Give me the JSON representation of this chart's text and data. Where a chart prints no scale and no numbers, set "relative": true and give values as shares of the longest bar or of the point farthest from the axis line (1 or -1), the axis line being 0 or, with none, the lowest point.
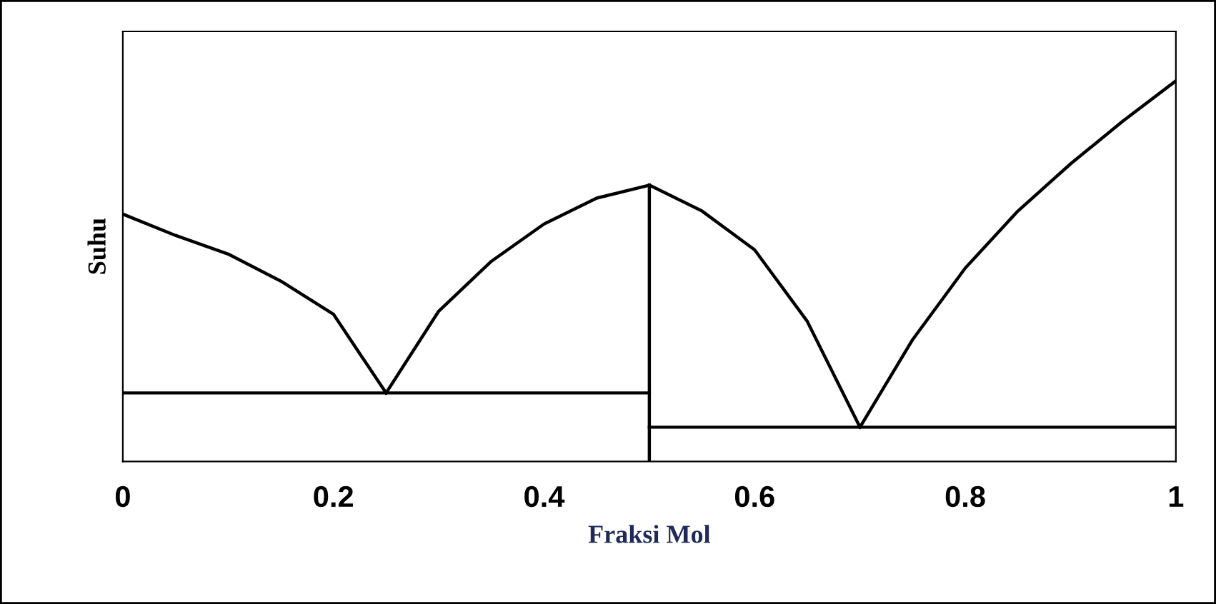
{
  "chart_data": {
    "type": "line",
    "relative": true,
    "xlabel": "Fraksi Mol",
    "ylabel": "Suhu",
    "xlim": [
      0,
      1
    ],
    "xticks": [
      0,
      0.2,
      0.4,
      0.6,
      0.8,
      1
    ],
    "tick_labels": "x",
    "grid": false,
    "legend": false,
    "marker": "none",
    "line_style": "solid",
    "series": [
      {
        "color": "#000000",
        "x": [
          0,
          0.05,
          0.1,
          0.15,
          0.2,
          0.25
        ],
        "values": [
          0.65,
          0.594,
          0.545,
          0.474,
          0.387,
          0.18
        ]
      },
      {
        "color": "#000000",
        "x": [
          0.25,
          0.3,
          0.35,
          0.4,
          0.45,
          0.5
        ],
        "values": [
          0.18,
          0.395,
          0.526,
          0.624,
          0.692,
          0.726
        ]
      },
      {
        "color": "#000000",
        "x": [
          0.5,
          0.55,
          0.6,
          0.65,
          0.7
        ],
        "values": [
          0.726,
          0.658,
          0.556,
          0.368,
          0.09
        ]
      },
      {
        "color": "#000000",
        "x": [
          0.7,
          0.75,
          0.8,
          0.85,
          0.9,
          0.95,
          1
        ],
        "values": [
          0.09,
          0.32,
          0.508,
          0.658,
          0.782,
          0.895,
          1
        ]
      },
      {
        "color": "#000000",
        "x": [
          0,
          0.5
        ],
        "values": [
          0.18,
          0.18
        ]
      },
      {
        "color": "#000000",
        "x": [
          0.5,
          0.5
        ],
        "values": [
          0,
          0.726
        ]
      },
      {
        "color": "#000000",
        "x": [
          0.5,
          1
        ],
        "values": [
          0.09,
          0.09
        ]
      }
    ]
  }
}
